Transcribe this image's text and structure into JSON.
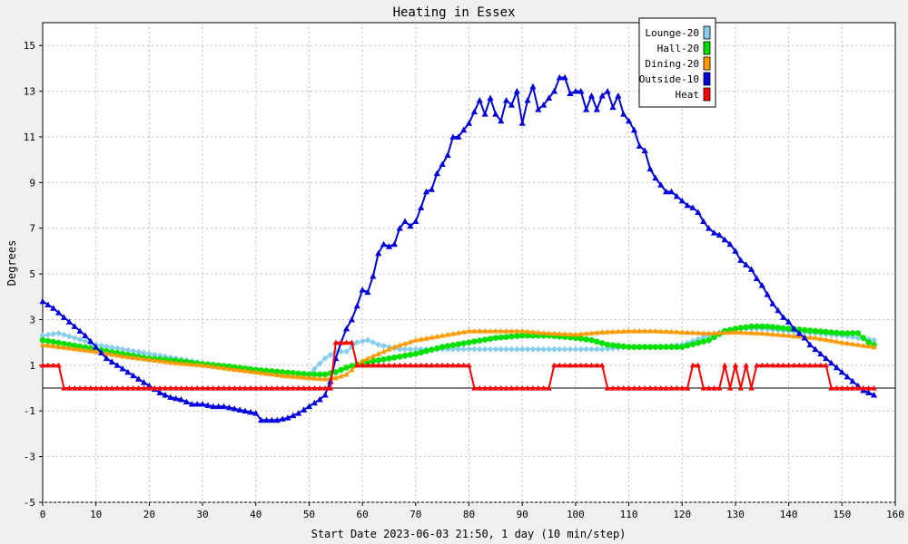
{
  "chart_data": {
    "type": "line",
    "title": "Heating in Essex",
    "xlabel": "Start Date 2023-06-03 21:50, 1 day (10 min/step)",
    "ylabel": "Degrees",
    "xlim": [
      0,
      160
    ],
    "ylim": [
      -5,
      16
    ],
    "xticks": [
      "0",
      "10",
      "20",
      "30",
      "40",
      "50",
      "60",
      "70",
      "80",
      "90",
      "100",
      "110",
      "120",
      "130",
      "140",
      "150",
      "160"
    ],
    "yticks": [
      "-5",
      "-3",
      "-1",
      "1",
      "3",
      "5",
      "7",
      "9",
      "11",
      "13",
      "15"
    ],
    "grid": true,
    "legend_position": "top-right",
    "series": [
      {
        "name": "Lounge-20",
        "color": "#87ceeb",
        "marker": "diamond",
        "points": [
          [
            0,
            2.3
          ],
          [
            3,
            2.4
          ],
          [
            6,
            2.2
          ],
          [
            10,
            1.9
          ],
          [
            15,
            1.7
          ],
          [
            20,
            1.5
          ],
          [
            25,
            1.3
          ],
          [
            30,
            1.1
          ],
          [
            35,
            0.9
          ],
          [
            40,
            0.8
          ],
          [
            45,
            0.7
          ],
          [
            50,
            0.6
          ],
          [
            53,
            1.3
          ],
          [
            55,
            1.6
          ],
          [
            57,
            1.6
          ],
          [
            59,
            2.0
          ],
          [
            61,
            2.1
          ],
          [
            63,
            1.9
          ],
          [
            65,
            1.8
          ],
          [
            67,
            1.7
          ],
          [
            70,
            1.7
          ],
          [
            75,
            1.7
          ],
          [
            80,
            1.7
          ],
          [
            85,
            1.7
          ],
          [
            90,
            1.7
          ],
          [
            95,
            1.7
          ],
          [
            100,
            1.7
          ],
          [
            105,
            1.7
          ],
          [
            110,
            1.8
          ],
          [
            115,
            1.8
          ],
          [
            120,
            1.9
          ],
          [
            125,
            2.3
          ],
          [
            128,
            2.5
          ],
          [
            130,
            2.6
          ],
          [
            135,
            2.6
          ],
          [
            140,
            2.5
          ],
          [
            145,
            2.4
          ],
          [
            150,
            2.3
          ],
          [
            153,
            2.2
          ],
          [
            156,
            2.1
          ]
        ]
      },
      {
        "name": "Hall-20",
        "color": "#00e000",
        "marker": "circle",
        "points": [
          [
            0,
            2.1
          ],
          [
            5,
            1.9
          ],
          [
            10,
            1.7
          ],
          [
            15,
            1.5
          ],
          [
            20,
            1.3
          ],
          [
            25,
            1.2
          ],
          [
            30,
            1.05
          ],
          [
            35,
            0.95
          ],
          [
            40,
            0.8
          ],
          [
            45,
            0.7
          ],
          [
            50,
            0.6
          ],
          [
            53,
            0.6
          ],
          [
            55,
            0.7
          ],
          [
            57,
            0.9
          ],
          [
            60,
            1.1
          ],
          [
            65,
            1.3
          ],
          [
            70,
            1.5
          ],
          [
            75,
            1.8
          ],
          [
            80,
            2.0
          ],
          [
            85,
            2.2
          ],
          [
            90,
            2.3
          ],
          [
            95,
            2.3
          ],
          [
            100,
            2.2
          ],
          [
            103,
            2.1
          ],
          [
            106,
            1.9
          ],
          [
            110,
            1.8
          ],
          [
            115,
            1.8
          ],
          [
            120,
            1.8
          ],
          [
            125,
            2.1
          ],
          [
            128,
            2.5
          ],
          [
            130,
            2.6
          ],
          [
            133,
            2.7
          ],
          [
            136,
            2.7
          ],
          [
            140,
            2.6
          ],
          [
            145,
            2.5
          ],
          [
            150,
            2.4
          ],
          [
            153,
            2.4
          ],
          [
            155,
            2.0
          ],
          [
            156,
            1.9
          ]
        ]
      },
      {
        "name": "Dining-20",
        "color": "#ff9900",
        "marker": "triangle",
        "points": [
          [
            0,
            1.9
          ],
          [
            5,
            1.75
          ],
          [
            10,
            1.6
          ],
          [
            15,
            1.4
          ],
          [
            20,
            1.25
          ],
          [
            25,
            1.1
          ],
          [
            30,
            1.0
          ],
          [
            35,
            0.85
          ],
          [
            40,
            0.7
          ],
          [
            45,
            0.55
          ],
          [
            50,
            0.45
          ],
          [
            53,
            0.4
          ],
          [
            55,
            0.45
          ],
          [
            57,
            0.6
          ],
          [
            60,
            1.2
          ],
          [
            63,
            1.5
          ],
          [
            66,
            1.8
          ],
          [
            70,
            2.1
          ],
          [
            75,
            2.3
          ],
          [
            80,
            2.5
          ],
          [
            85,
            2.5
          ],
          [
            90,
            2.5
          ],
          [
            95,
            2.4
          ],
          [
            100,
            2.35
          ],
          [
            105,
            2.45
          ],
          [
            110,
            2.5
          ],
          [
            115,
            2.5
          ],
          [
            120,
            2.45
          ],
          [
            125,
            2.4
          ],
          [
            130,
            2.45
          ],
          [
            135,
            2.4
          ],
          [
            140,
            2.3
          ],
          [
            145,
            2.2
          ],
          [
            150,
            2.0
          ],
          [
            156,
            1.8
          ]
        ]
      },
      {
        "name": "Outside-10",
        "color": "#0000dd",
        "marker": "triangle",
        "points": [
          [
            0,
            3.8
          ],
          [
            2,
            3.5
          ],
          [
            4,
            3.1
          ],
          [
            6,
            2.7
          ],
          [
            8,
            2.3
          ],
          [
            10,
            1.8
          ],
          [
            12,
            1.3
          ],
          [
            14,
            1.0
          ],
          [
            16,
            0.7
          ],
          [
            18,
            0.4
          ],
          [
            20,
            0.1
          ],
          [
            22,
            -0.2
          ],
          [
            24,
            -0.4
          ],
          [
            26,
            -0.5
          ],
          [
            28,
            -0.7
          ],
          [
            30,
            -0.7
          ],
          [
            32,
            -0.8
          ],
          [
            34,
            -0.8
          ],
          [
            36,
            -0.9
          ],
          [
            38,
            -1.0
          ],
          [
            40,
            -1.1
          ],
          [
            41,
            -1.4
          ],
          [
            42,
            -1.4
          ],
          [
            44,
            -1.4
          ],
          [
            46,
            -1.3
          ],
          [
            48,
            -1.1
          ],
          [
            50,
            -0.8
          ],
          [
            52,
            -0.5
          ],
          [
            53,
            -0.3
          ],
          [
            54,
            0.3
          ],
          [
            55,
            1.3
          ],
          [
            56,
            2.0
          ],
          [
            57,
            2.6
          ],
          [
            58,
            3.0
          ],
          [
            59,
            3.6
          ],
          [
            60,
            4.3
          ],
          [
            61,
            4.2
          ],
          [
            62,
            4.9
          ],
          [
            63,
            5.9
          ],
          [
            64,
            6.3
          ],
          [
            65,
            6.2
          ],
          [
            66,
            6.3
          ],
          [
            67,
            7.0
          ],
          [
            68,
            7.3
          ],
          [
            69,
            7.1
          ],
          [
            70,
            7.3
          ],
          [
            71,
            7.9
          ],
          [
            72,
            8.6
          ],
          [
            73,
            8.7
          ],
          [
            74,
            9.4
          ],
          [
            75,
            9.8
          ],
          [
            76,
            10.2
          ],
          [
            77,
            11.0
          ],
          [
            78,
            11.0
          ],
          [
            79,
            11.3
          ],
          [
            80,
            11.6
          ],
          [
            81,
            12.1
          ],
          [
            82,
            12.6
          ],
          [
            83,
            12.0
          ],
          [
            84,
            12.7
          ],
          [
            85,
            12.0
          ],
          [
            86,
            11.7
          ],
          [
            87,
            12.6
          ],
          [
            88,
            12.4
          ],
          [
            89,
            13.0
          ],
          [
            90,
            11.6
          ],
          [
            91,
            12.6
          ],
          [
            92,
            13.2
          ],
          [
            93,
            12.2
          ],
          [
            94,
            12.4
          ],
          [
            95,
            12.7
          ],
          [
            96,
            13.0
          ],
          [
            97,
            13.6
          ],
          [
            98,
            13.6
          ],
          [
            99,
            12.9
          ],
          [
            100,
            13.0
          ],
          [
            101,
            13.0
          ],
          [
            102,
            12.2
          ],
          [
            103,
            12.8
          ],
          [
            104,
            12.2
          ],
          [
            105,
            12.8
          ],
          [
            106,
            13.0
          ],
          [
            107,
            12.3
          ],
          [
            108,
            12.8
          ],
          [
            109,
            12.0
          ],
          [
            110,
            11.7
          ],
          [
            111,
            11.3
          ],
          [
            112,
            10.6
          ],
          [
            113,
            10.4
          ],
          [
            114,
            9.6
          ],
          [
            115,
            9.2
          ],
          [
            116,
            8.9
          ],
          [
            117,
            8.6
          ],
          [
            118,
            8.6
          ],
          [
            119,
            8.4
          ],
          [
            120,
            8.2
          ],
          [
            121,
            8.0
          ],
          [
            122,
            7.9
          ],
          [
            123,
            7.7
          ],
          [
            124,
            7.3
          ],
          [
            125,
            7.0
          ],
          [
            126,
            6.8
          ],
          [
            127,
            6.7
          ],
          [
            128,
            6.5
          ],
          [
            129,
            6.3
          ],
          [
            130,
            6.0
          ],
          [
            131,
            5.6
          ],
          [
            132,
            5.4
          ],
          [
            133,
            5.2
          ],
          [
            134,
            4.8
          ],
          [
            135,
            4.5
          ],
          [
            136,
            4.1
          ],
          [
            137,
            3.7
          ],
          [
            138,
            3.4
          ],
          [
            139,
            3.1
          ],
          [
            140,
            2.9
          ],
          [
            141,
            2.6
          ],
          [
            142,
            2.4
          ],
          [
            143,
            2.2
          ],
          [
            144,
            1.9
          ],
          [
            145,
            1.7
          ],
          [
            146,
            1.5
          ],
          [
            147,
            1.3
          ],
          [
            148,
            1.1
          ],
          [
            149,
            0.9
          ],
          [
            150,
            0.7
          ],
          [
            151,
            0.5
          ],
          [
            152,
            0.3
          ],
          [
            153,
            0.1
          ],
          [
            154,
            -0.1
          ],
          [
            155,
            -0.2
          ],
          [
            156,
            -0.3
          ]
        ]
      },
      {
        "name": "Heat",
        "color": "#ff0000",
        "marker": "triangle",
        "points": [
          [
            0,
            1
          ],
          [
            3,
            1
          ],
          [
            4,
            0
          ],
          [
            53,
            0
          ],
          [
            54,
            0
          ],
          [
            55,
            2
          ],
          [
            58,
            2
          ],
          [
            59,
            1
          ],
          [
            80,
            1
          ],
          [
            81,
            0
          ],
          [
            95,
            0
          ],
          [
            96,
            1
          ],
          [
            105,
            1
          ],
          [
            106,
            0
          ],
          [
            121,
            0
          ],
          [
            122,
            1
          ],
          [
            123,
            1
          ],
          [
            124,
            0
          ],
          [
            127,
            0
          ],
          [
            128,
            1
          ],
          [
            129,
            0
          ],
          [
            130,
            1
          ],
          [
            131,
            0
          ],
          [
            132,
            1
          ],
          [
            133,
            0
          ],
          [
            134,
            1
          ],
          [
            147,
            1
          ],
          [
            148,
            0
          ],
          [
            156,
            0
          ]
        ]
      }
    ]
  }
}
